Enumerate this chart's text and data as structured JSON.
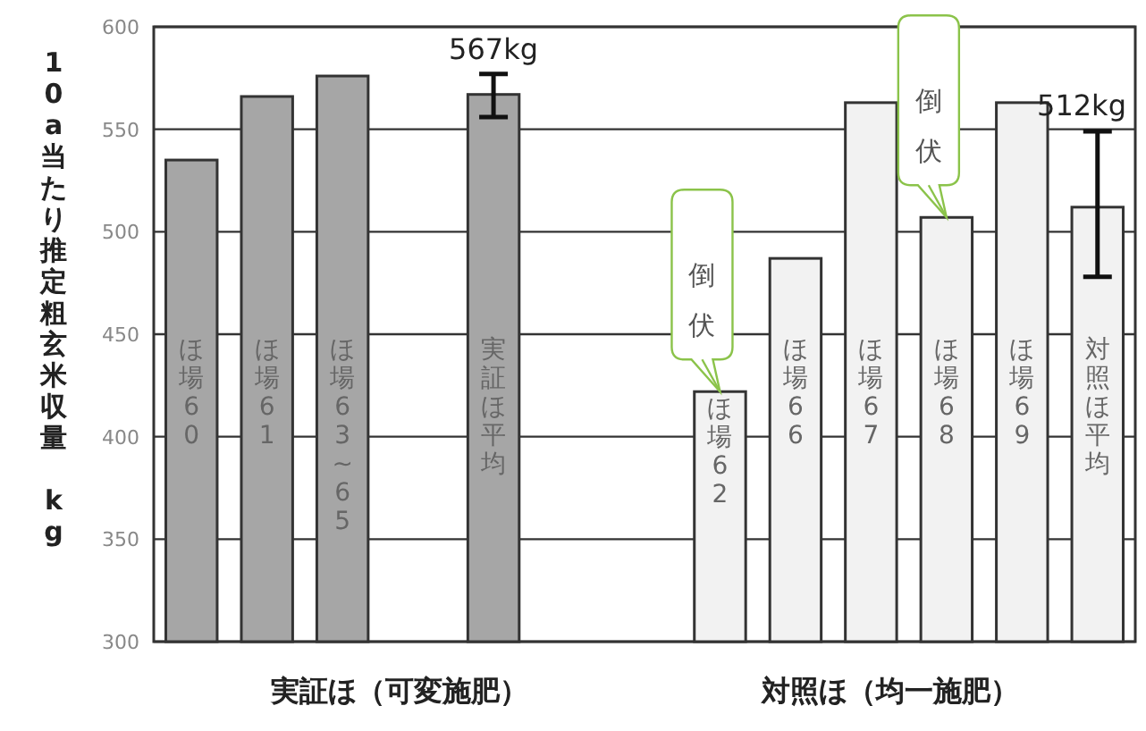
{
  "chart_data": {
    "type": "bar",
    "ylabel": "10a当たり推定粗玄米収量 kg",
    "categories": [
      "ほ場60",
      "ほ場61",
      "ほ場63~65",
      null,
      "実証ほ平均",
      null,
      null,
      "ほ場62",
      "ほ場66",
      "ほ場67",
      "ほ場68",
      "ほ場69",
      "対照ほ平均"
    ],
    "values": [
      535,
      566,
      576,
      null,
      567,
      null,
      null,
      422,
      487,
      563,
      507,
      563,
      512
    ],
    "colors": [
      "#a6a6a6",
      "#a6a6a6",
      "#a6a6a6",
      null,
      "#a6a6a6",
      null,
      null,
      "#f2f2f2",
      "#f2f2f2",
      "#f2f2f2",
      "#f2f2f2",
      "#f2f2f2",
      "#f2f2f2"
    ],
    "errors": [
      null,
      null,
      null,
      null,
      [
        556,
        577
      ],
      null,
      null,
      null,
      null,
      null,
      null,
      null,
      [
        478,
        549
      ]
    ],
    "value_labels": [
      null,
      null,
      null,
      null,
      "567kg",
      null,
      null,
      null,
      null,
      null,
      null,
      null,
      "512kg"
    ],
    "ylim": [
      300,
      600
    ],
    "yticks": [
      300,
      350,
      400,
      450,
      500,
      550,
      600
    ],
    "grid": "y",
    "annotations": [
      "実証ほ（可変施肥）",
      "対照ほ（均一施肥）",
      {
        "text": "倒伏",
        "x": "ほ場62",
        "y": 422
      },
      {
        "text": "倒伏",
        "x": "ほ場68",
        "y": 507
      }
    ]
  }
}
